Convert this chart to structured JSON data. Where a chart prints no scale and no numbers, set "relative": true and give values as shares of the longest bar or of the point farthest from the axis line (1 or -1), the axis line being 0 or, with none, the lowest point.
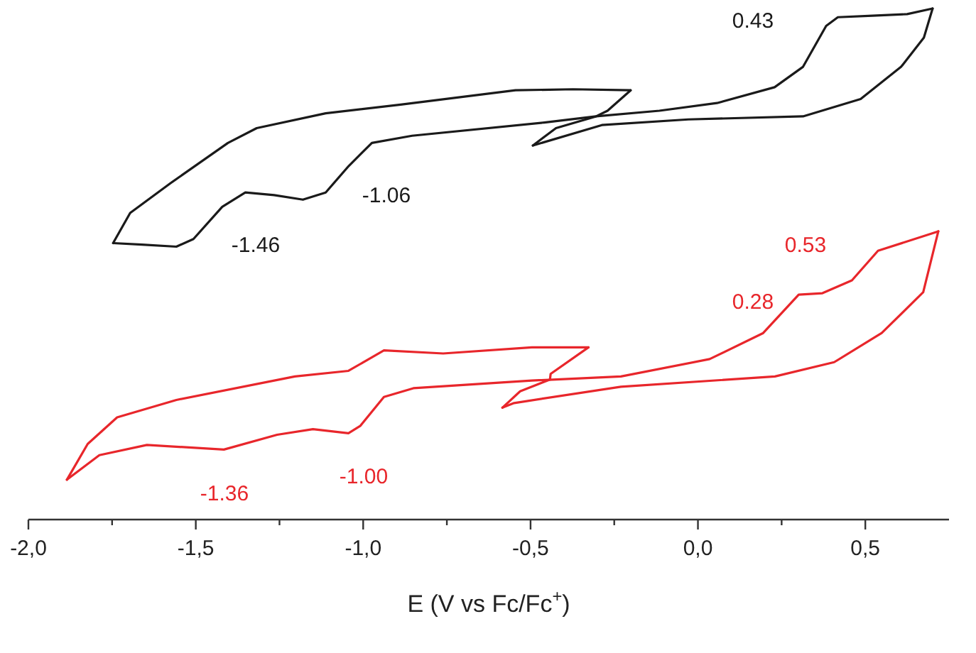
{
  "chart_data": {
    "type": "line",
    "relative": true,
    "xlabel": "E (V vs Fc/Fc$^{+}$)",
    "xlim": [
      -2.0,
      0.75
    ],
    "xticks": [
      {
        "value": -2.0,
        "label": "-2,0"
      },
      {
        "value": -1.75,
        "label": null
      },
      {
        "value": -1.5,
        "label": "-1,5"
      },
      {
        "value": -1.25,
        "label": null
      },
      {
        "value": -1.0,
        "label": "-1,0"
      },
      {
        "value": -0.75,
        "label": null
      },
      {
        "value": -0.5,
        "label": "-0,5"
      },
      {
        "value": -0.25,
        "label": null
      },
      {
        "value": 0.0,
        "label": "0,0"
      },
      {
        "value": 0.25,
        "label": null
      },
      {
        "value": 0.5,
        "label": "0,5"
      }
    ],
    "line_style": "solid",
    "marker": "none",
    "series": [
      {
        "color": "#1a1a1a",
        "x": [
          -1.747,
          -1.661,
          -1.558,
          -1.507,
          -1.421,
          -1.352,
          -1.266,
          -1.18,
          -1.112,
          -1.043,
          -0.974,
          -0.854,
          -0.459,
          -0.304,
          -0.115,
          0.057,
          0.229,
          0.314,
          0.383,
          0.418,
          0.521,
          0.625,
          0.701
        ],
        "values": [
          0.541,
          0.538,
          0.534,
          0.549,
          0.612,
          0.64,
          0.635,
          0.626,
          0.64,
          0.692,
          0.737,
          0.751,
          0.777,
          0.789,
          0.8,
          0.815,
          0.846,
          0.886,
          0.966,
          0.983,
          0.986,
          0.989,
          1.0
        ]
      },
      {
        "color": "#1a1a1a",
        "x": [
          0.701,
          0.675,
          0.607,
          0.486,
          0.314,
          -0.029,
          -0.287,
          -0.493
        ],
        "values": [
          1.0,
          0.943,
          0.886,
          0.823,
          0.789,
          0.783,
          0.772,
          0.732
        ]
      },
      {
        "color": "#1a1a1a",
        "x": [
          -0.493,
          -0.424,
          -0.304,
          -0.27,
          -0.201
        ],
        "values": [
          0.732,
          0.766,
          0.789,
          0.8,
          0.84
        ]
      },
      {
        "color": "#1a1a1a",
        "x": [
          -0.201,
          -0.373,
          -0.545,
          -0.888,
          -1.112,
          -1.318,
          -1.404,
          -1.576,
          -1.696,
          -1.747
        ],
        "values": [
          0.84,
          0.842,
          0.84,
          0.812,
          0.795,
          0.766,
          0.737,
          0.658,
          0.6,
          0.541
        ]
      },
      {
        "color": "#e8262b",
        "x": [
          -1.885,
          -1.788,
          -1.646,
          -1.416,
          -1.257,
          -1.15,
          -1.044,
          -1.009,
          -0.938,
          -0.85,
          -0.496,
          -0.23,
          0.035,
          0.195,
          0.301,
          0.372,
          0.46,
          0.538,
          0.718
        ],
        "values": [
          0.078,
          0.126,
          0.146,
          0.137,
          0.166,
          0.177,
          0.169,
          0.183,
          0.24,
          0.257,
          0.272,
          0.28,
          0.314,
          0.365,
          0.44,
          0.443,
          0.468,
          0.526,
          0.564
        ]
      },
      {
        "color": "#e8262b",
        "x": [
          0.718,
          0.673,
          0.549,
          0.407,
          0.23,
          -0.23,
          -0.549,
          -0.584
        ],
        "values": [
          0.564,
          0.445,
          0.365,
          0.308,
          0.28,
          0.26,
          0.228,
          0.219
        ]
      },
      {
        "color": "#e8262b",
        "x": [
          -0.584,
          -0.531,
          -0.442,
          -0.44,
          -0.327
        ],
        "values": [
          0.219,
          0.251,
          0.274,
          0.285,
          0.337
        ]
      },
      {
        "color": "#e8262b",
        "x": [
          -0.327,
          -0.496,
          -0.761,
          -0.938,
          -1.044,
          -1.204,
          -1.558,
          -1.735,
          -1.823,
          -1.885
        ],
        "values": [
          0.337,
          0.337,
          0.325,
          0.331,
          0.291,
          0.28,
          0.234,
          0.2,
          0.148,
          0.078
        ]
      }
    ],
    "annotations": [
      "0.43",
      "-1.06",
      "-1.46",
      "0.53",
      "0.28",
      "-1.00",
      "-1.36"
    ]
  }
}
